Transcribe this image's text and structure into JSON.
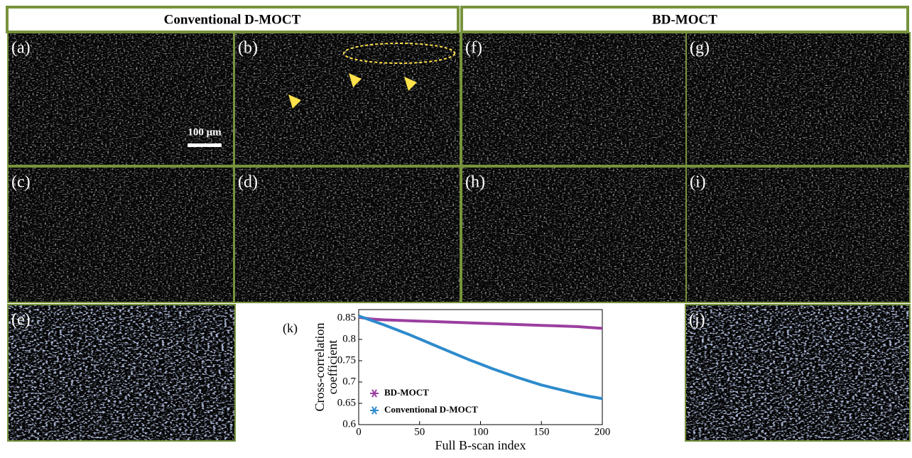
{
  "header": {
    "left": "Conventional D-MOCT",
    "right": "BD-MOCT"
  },
  "panels": [
    {
      "label": "(a)"
    },
    {
      "label": "(b)"
    },
    {
      "label": "(f)"
    },
    {
      "label": "(g)"
    },
    {
      "label": "(c)"
    },
    {
      "label": "(d)"
    },
    {
      "label": "(h)"
    },
    {
      "label": "(i)"
    },
    {
      "label": "(e)"
    },
    {
      "label": "(j)"
    }
  ],
  "scale_bar": "100 μm",
  "chart_data": {
    "type": "line",
    "label": "(k)",
    "xlabel": "Full B-scan index",
    "ylabel": [
      "Cross-correlation",
      "coefficient"
    ],
    "x": [
      0,
      10,
      20,
      30,
      40,
      50,
      60,
      70,
      80,
      90,
      100,
      110,
      120,
      130,
      140,
      150,
      160,
      170,
      180,
      190,
      200
    ],
    "series": [
      {
        "name": "BD-MOCT",
        "color": "#9b3fa0",
        "values": [
          0.852,
          0.848,
          0.846,
          0.845,
          0.844,
          0.843,
          0.842,
          0.841,
          0.84,
          0.839,
          0.838,
          0.837,
          0.836,
          0.835,
          0.834,
          0.833,
          0.832,
          0.831,
          0.83,
          0.828,
          0.826
        ]
      },
      {
        "name": "Conventional D-MOCT",
        "color": "#2e8bcc",
        "values": [
          0.855,
          0.845,
          0.835,
          0.824,
          0.813,
          0.801,
          0.789,
          0.777,
          0.765,
          0.753,
          0.742,
          0.731,
          0.721,
          0.711,
          0.702,
          0.693,
          0.686,
          0.679,
          0.672,
          0.666,
          0.661
        ]
      }
    ],
    "xlim": [
      0,
      200
    ],
    "xticks": [
      0,
      50,
      100,
      150,
      200
    ],
    "ylim": [
      0.6,
      0.87
    ],
    "yticks": [
      0.6,
      0.65,
      0.7,
      0.75,
      0.8,
      0.85
    ],
    "legend": "lower left"
  }
}
